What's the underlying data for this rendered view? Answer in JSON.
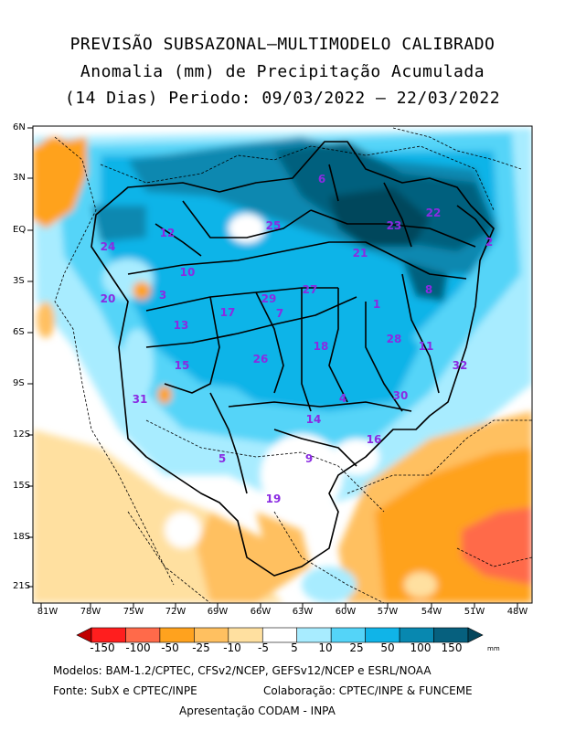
{
  "title": {
    "line1": "PREVISÃO SUBSAZONAL—MULTIMODELO CALIBRADO",
    "line2": "Anomalia (mm) de Precipitação Acumulada",
    "line3": "(14 Dias) Periodo: 09/03/2022 — 22/03/2022"
  },
  "axes": {
    "lat_labels": [
      "6N",
      "3N",
      "EQ",
      "3S",
      "6S",
      "9S",
      "12S",
      "15S",
      "18S",
      "21S"
    ],
    "lon_labels": [
      "81W",
      "78W",
      "75W",
      "72W",
      "69W",
      "66W",
      "63W",
      "60W",
      "57W",
      "54W",
      "51W",
      "48W"
    ]
  },
  "basins": [
    {
      "id": "6"
    },
    {
      "id": "25"
    },
    {
      "id": "23"
    },
    {
      "id": "22"
    },
    {
      "id": "12"
    },
    {
      "id": "24"
    },
    {
      "id": "21"
    },
    {
      "id": "2"
    },
    {
      "id": "10"
    },
    {
      "id": "3"
    },
    {
      "id": "20"
    },
    {
      "id": "27"
    },
    {
      "id": "29"
    },
    {
      "id": "8"
    },
    {
      "id": "1"
    },
    {
      "id": "17"
    },
    {
      "id": "7"
    },
    {
      "id": "13"
    },
    {
      "id": "28"
    },
    {
      "id": "11"
    },
    {
      "id": "18"
    },
    {
      "id": "26"
    },
    {
      "id": "15"
    },
    {
      "id": "32"
    },
    {
      "id": "30"
    },
    {
      "id": "4"
    },
    {
      "id": "31"
    },
    {
      "id": "14"
    },
    {
      "id": "16"
    },
    {
      "id": "9"
    },
    {
      "id": "5"
    },
    {
      "id": "19"
    }
  ],
  "colorbar": {
    "labels": [
      "-150",
      "-100",
      "-50",
      "-25",
      "-10",
      "-5",
      "5",
      "10",
      "25",
      "50",
      "100",
      "150"
    ],
    "unit": "mm",
    "colors": [
      "#c00000",
      "#ff1e1e",
      "#ff6a4a",
      "#ffa21e",
      "#ffc060",
      "#ffe0a0",
      "#ffffff",
      "#a8ecff",
      "#54d4f8",
      "#10b4e8",
      "#0888b0",
      "#06607e",
      "#04465c"
    ]
  },
  "credits": {
    "models": "Modelos: BAM-1.2/CPTEC, CFSv2/NCEP, GEFSv12/NCEP e ESRL/NOAA",
    "source": "Fonte: SubX e CPTEC/INPE",
    "collab": "Colaboração: CPTEC/INPE & FUNCEME",
    "presentation": "Apresentação CODAM - INPA"
  }
}
